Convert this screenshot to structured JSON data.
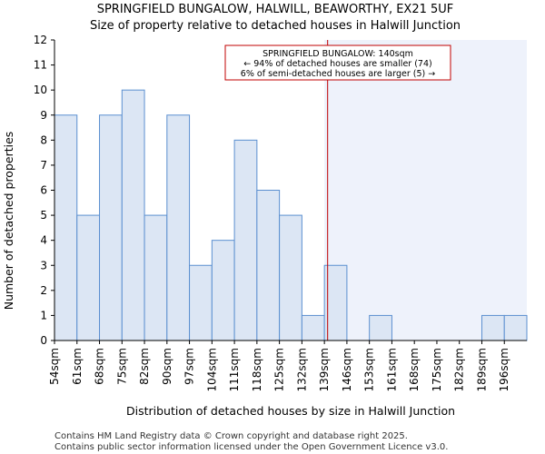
{
  "chart_data": {
    "type": "bar",
    "title": "SPRINGFIELD BUNGALOW, HALWILL, BEAWORTHY, EX21 5UF",
    "subtitle": "Size of property relative to detached houses in Halwill Junction",
    "xlabel": "Distribution of detached houses by size in Halwill Junction",
    "ylabel": "Number of detached properties",
    "categories": [
      "54sqm",
      "61sqm",
      "68sqm",
      "75sqm",
      "82sqm",
      "90sqm",
      "97sqm",
      "104sqm",
      "111sqm",
      "118sqm",
      "125sqm",
      "132sqm",
      "139sqm",
      "146sqm",
      "153sqm",
      "161sqm",
      "168sqm",
      "175sqm",
      "182sqm",
      "189sqm",
      "196sqm"
    ],
    "values": [
      9,
      5,
      9,
      10,
      5,
      9,
      3,
      4,
      8,
      6,
      5,
      1,
      3,
      0,
      1,
      0,
      0,
      0,
      0,
      1,
      1
    ],
    "ylim": [
      0,
      12
    ],
    "yticks": [
      0,
      1,
      2,
      3,
      4,
      5,
      6,
      7,
      8,
      9,
      10,
      11,
      12
    ],
    "marker_value_sqm": 140,
    "marker_bin_index": 12,
    "annotation": {
      "line1": "SPRINGFIELD BUNGALOW: 140sqm",
      "line2": "← 94% of detached houses are smaller (74)",
      "line3": "6% of semi-detached houses are larger (5) →"
    },
    "colors": {
      "bar_fill": "#dce6f4",
      "bar_stroke": "#5b8fd0",
      "highlight_bg": "#eef2fb",
      "marker_line": "#c00000"
    }
  },
  "footer": {
    "line1": "Contains HM Land Registry data © Crown copyright and database right 2025.",
    "line2": "Contains public sector information licensed under the Open Government Licence v3.0."
  }
}
